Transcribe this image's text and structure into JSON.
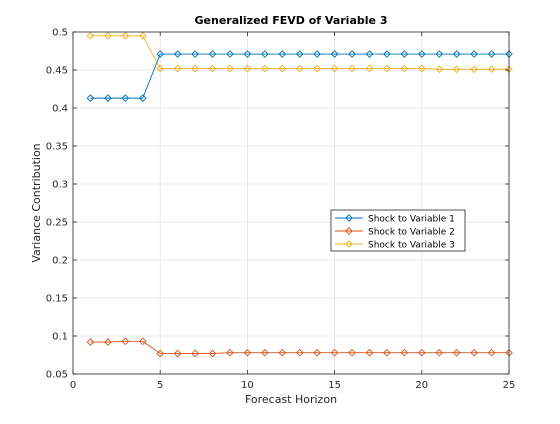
{
  "chart_data": {
    "type": "line",
    "title": "Generalized FEVD of Variable 3",
    "xlabel": "Forecast Horizon",
    "ylabel": "Variance Contribution",
    "xlim": [
      0,
      25
    ],
    "ylim": [
      0.05,
      0.5
    ],
    "xticks": [
      0,
      5,
      10,
      15,
      20,
      25
    ],
    "xtick_labels": [
      "0",
      "5",
      "10",
      "15",
      "20",
      "25"
    ],
    "yticks": [
      0.05,
      0.1,
      0.15,
      0.2,
      0.25,
      0.3,
      0.35,
      0.4,
      0.45,
      0.5
    ],
    "ytick_labels": [
      "0.05",
      "0.1",
      "0.15",
      "0.2",
      "0.25",
      "0.3",
      "0.35",
      "0.4",
      "0.45",
      "0.5"
    ],
    "grid": true,
    "legend_position": "center-right",
    "x": [
      1,
      2,
      3,
      4,
      5,
      6,
      7,
      8,
      9,
      10,
      11,
      12,
      13,
      14,
      15,
      16,
      17,
      18,
      19,
      20,
      21,
      22,
      23,
      24,
      25
    ],
    "series": [
      {
        "name": "Shock to Variable 1",
        "color": "#0072BD",
        "marker": "diamond",
        "values": [
          0.413,
          0.413,
          0.413,
          0.413,
          0.471,
          0.471,
          0.471,
          0.471,
          0.471,
          0.471,
          0.471,
          0.471,
          0.471,
          0.471,
          0.471,
          0.471,
          0.471,
          0.471,
          0.471,
          0.471,
          0.471,
          0.471,
          0.471,
          0.471,
          0.471
        ]
      },
      {
        "name": "Shock to Variable 2",
        "color": "#D95319",
        "marker": "diamond",
        "values": [
          0.092,
          0.092,
          0.093,
          0.093,
          0.077,
          0.077,
          0.077,
          0.077,
          0.078,
          0.078,
          0.078,
          0.078,
          0.078,
          0.078,
          0.078,
          0.078,
          0.078,
          0.078,
          0.078,
          0.078,
          0.078,
          0.078,
          0.078,
          0.078,
          0.078
        ]
      },
      {
        "name": "Shock to Variable 3",
        "color": "#EDB120",
        "marker": "diamond",
        "values": [
          0.495,
          0.495,
          0.495,
          0.495,
          0.452,
          0.452,
          0.452,
          0.452,
          0.452,
          0.452,
          0.452,
          0.452,
          0.452,
          0.452,
          0.452,
          0.452,
          0.452,
          0.452,
          0.452,
          0.452,
          0.451,
          0.451,
          0.451,
          0.451,
          0.451
        ]
      }
    ]
  }
}
